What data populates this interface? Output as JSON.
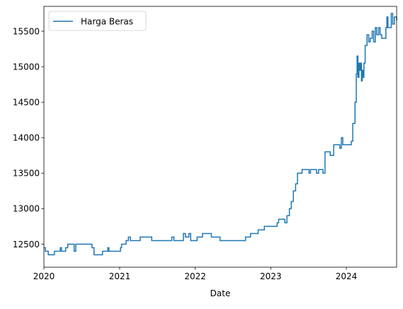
{
  "chart_data": {
    "type": "line",
    "title": "",
    "xlabel": "Date",
    "ylabel": "",
    "x_range": [
      "2020-01-01",
      "2024-08-31"
    ],
    "ylim": [
      12175,
      15850
    ],
    "x_ticks": [
      {
        "date": "2020-01-01",
        "label": "2020"
      },
      {
        "date": "2021-01-01",
        "label": "2021"
      },
      {
        "date": "2022-01-01",
        "label": "2022"
      },
      {
        "date": "2023-01-01",
        "label": "2023"
      },
      {
        "date": "2024-01-01",
        "label": "2024"
      }
    ],
    "y_ticks": [
      12500,
      13000,
      13500,
      14000,
      14500,
      15000,
      15500
    ],
    "grid": false,
    "legend": {
      "position": "top-left"
    },
    "series": [
      {
        "name": "Harga Beras",
        "color": "#1f77b4",
        "step": true,
        "points": [
          [
            "2020-01-01",
            12450
          ],
          [
            "2020-01-08",
            12400
          ],
          [
            "2020-01-22",
            12350
          ],
          [
            "2020-02-21",
            12400
          ],
          [
            "2020-03-20",
            12450
          ],
          [
            "2020-03-26",
            12400
          ],
          [
            "2020-04-15",
            12450
          ],
          [
            "2020-04-25",
            12500
          ],
          [
            "2020-05-26",
            12400
          ],
          [
            "2020-06-03",
            12500
          ],
          [
            "2020-08-20",
            12450
          ],
          [
            "2020-08-30",
            12350
          ],
          [
            "2020-10-10",
            12400
          ],
          [
            "2020-11-05",
            12450
          ],
          [
            "2020-11-10",
            12400
          ],
          [
            "2021-01-05",
            12450
          ],
          [
            "2021-01-10",
            12500
          ],
          [
            "2021-02-01",
            12550
          ],
          [
            "2021-02-12",
            12600
          ],
          [
            "2021-02-22",
            12550
          ],
          [
            "2021-04-10",
            12600
          ],
          [
            "2021-06-05",
            12550
          ],
          [
            "2021-09-10",
            12600
          ],
          [
            "2021-09-20",
            12550
          ],
          [
            "2021-11-05",
            12650
          ],
          [
            "2021-11-15",
            12600
          ],
          [
            "2021-12-01",
            12650
          ],
          [
            "2021-12-10",
            12550
          ],
          [
            "2022-01-10",
            12600
          ],
          [
            "2022-02-05",
            12650
          ],
          [
            "2022-03-20",
            12600
          ],
          [
            "2022-05-01",
            12550
          ],
          [
            "2022-09-01",
            12600
          ],
          [
            "2022-09-25",
            12650
          ],
          [
            "2022-11-01",
            12700
          ],
          [
            "2022-12-01",
            12750
          ],
          [
            "2023-02-01",
            12800
          ],
          [
            "2023-02-08",
            12850
          ],
          [
            "2023-03-01",
            12850
          ],
          [
            "2023-03-10",
            12800
          ],
          [
            "2023-03-20",
            12900
          ],
          [
            "2023-04-01",
            13000
          ],
          [
            "2023-04-10",
            13100
          ],
          [
            "2023-04-20",
            13250
          ],
          [
            "2023-05-01",
            13350
          ],
          [
            "2023-05-10",
            13500
          ],
          [
            "2023-06-01",
            13550
          ],
          [
            "2023-07-05",
            13500
          ],
          [
            "2023-07-12",
            13550
          ],
          [
            "2023-08-10",
            13500
          ],
          [
            "2023-08-20",
            13550
          ],
          [
            "2023-09-10",
            13500
          ],
          [
            "2023-09-20",
            13800
          ],
          [
            "2023-10-15",
            13750
          ],
          [
            "2023-11-01",
            13900
          ],
          [
            "2023-12-01",
            13850
          ],
          [
            "2023-12-08",
            14000
          ],
          [
            "2023-12-15",
            13900
          ],
          [
            "2024-01-10",
            13900
          ],
          [
            "2024-01-25",
            13950
          ],
          [
            "2024-02-01",
            14200
          ],
          [
            "2024-02-12",
            14500
          ],
          [
            "2024-02-18",
            14900
          ],
          [
            "2024-02-22",
            15150
          ],
          [
            "2024-02-26",
            14850
          ],
          [
            "2024-03-02",
            15050
          ],
          [
            "2024-03-06",
            14950
          ],
          [
            "2024-03-10",
            15050
          ],
          [
            "2024-03-14",
            14800
          ],
          [
            "2024-03-18",
            14950
          ],
          [
            "2024-03-22",
            14850
          ],
          [
            "2024-03-26",
            15050
          ],
          [
            "2024-04-01",
            15300
          ],
          [
            "2024-04-10",
            15450
          ],
          [
            "2024-04-18",
            15350
          ],
          [
            "2024-04-25",
            15400
          ],
          [
            "2024-05-05",
            15500
          ],
          [
            "2024-05-12",
            15350
          ],
          [
            "2024-05-20",
            15550
          ],
          [
            "2024-05-27",
            15450
          ],
          [
            "2024-06-05",
            15550
          ],
          [
            "2024-06-12",
            15450
          ],
          [
            "2024-06-20",
            15400
          ],
          [
            "2024-07-10",
            15550
          ],
          [
            "2024-07-15",
            15700
          ],
          [
            "2024-07-20",
            15550
          ],
          [
            "2024-08-05",
            15750
          ],
          [
            "2024-08-12",
            15600
          ],
          [
            "2024-08-20",
            15700
          ],
          [
            "2024-08-31",
            15650
          ]
        ]
      }
    ]
  }
}
